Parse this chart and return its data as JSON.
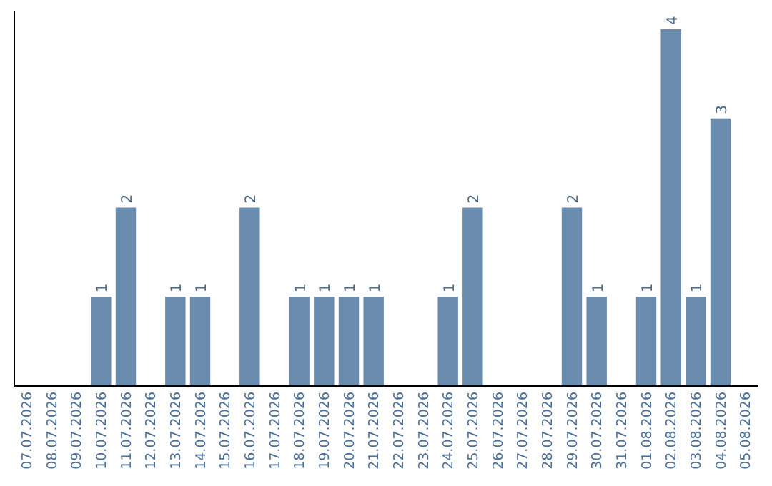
{
  "chart_data": {
    "type": "bar",
    "categories": [
      "07.07.2026",
      "08.07.2026",
      "09.07.2026",
      "10.07.2026",
      "11.07.2026",
      "12.07.2026",
      "13.07.2026",
      "14.07.2026",
      "15.07.2026",
      "16.07.2026",
      "17.07.2026",
      "18.07.2026",
      "19.07.2026",
      "20.07.2026",
      "21.07.2026",
      "22.07.2026",
      "23.07.2026",
      "24.07.2026",
      "25.07.2026",
      "26.07.2026",
      "27.07.2026",
      "28.07.2026",
      "29.07.2026",
      "30.07.2026",
      "31.07.2026",
      "01.08.2026",
      "02.08.2026",
      "03.08.2026",
      "04.08.2026",
      "05.08.2026"
    ],
    "values": [
      0,
      0,
      0,
      1,
      2,
      0,
      1,
      1,
      0,
      2,
      0,
      1,
      1,
      1,
      1,
      0,
      0,
      1,
      2,
      0,
      0,
      0,
      2,
      1,
      0,
      1,
      4,
      1,
      3,
      0
    ],
    "value_labels": [
      null,
      null,
      null,
      "1",
      "2",
      null,
      "1",
      "1",
      null,
      "2",
      null,
      "1",
      "1",
      "1",
      "1",
      null,
      null,
      "1",
      "2",
      null,
      null,
      null,
      "2",
      "1",
      null,
      "1",
      "4",
      "1",
      "3",
      null
    ],
    "color": "#6a8caf",
    "ylim": [
      0,
      4.2
    ],
    "tick_labels": "x",
    "grid": false
  }
}
